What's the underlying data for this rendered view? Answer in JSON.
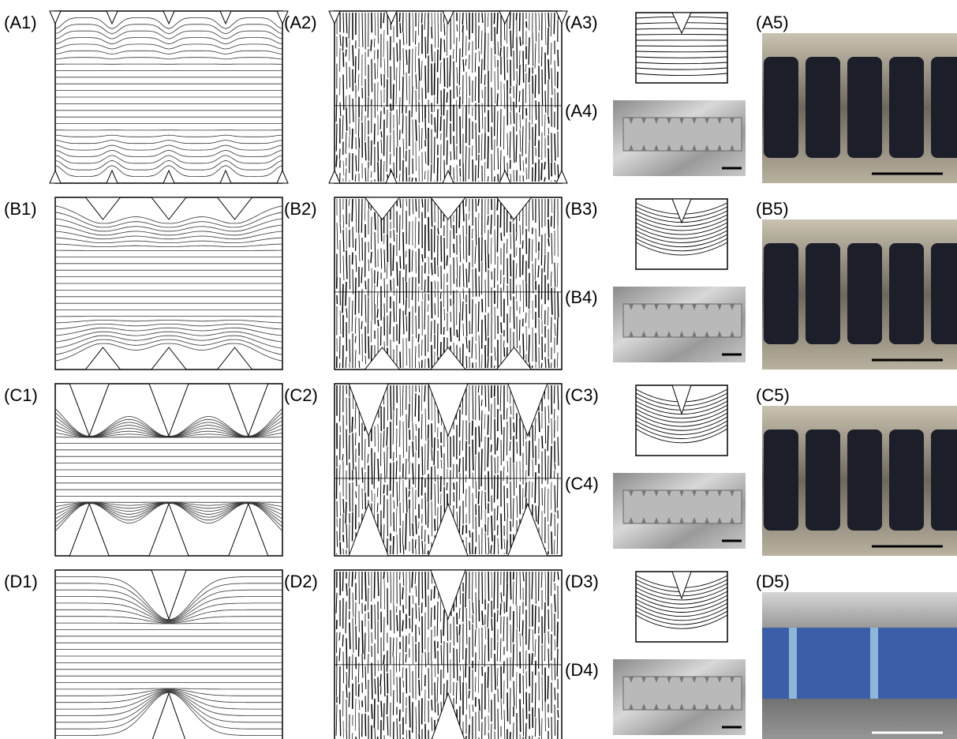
{
  "rows": [
    {
      "labels": [
        "(A1)",
        "(A2)",
        "(A3)",
        "(A4)",
        "(A5)"
      ]
    },
    {
      "labels": [
        "(B1)",
        "(B2)",
        "(B3)",
        "(B4)",
        "(B5)"
      ]
    },
    {
      "labels": [
        "(C1)",
        "(C2)",
        "(C3)",
        "(C4)",
        "(C5)"
      ]
    },
    {
      "labels": [
        "(D1)",
        "(D2)",
        "(D3)",
        "(D4)",
        "(D5)"
      ]
    }
  ]
}
